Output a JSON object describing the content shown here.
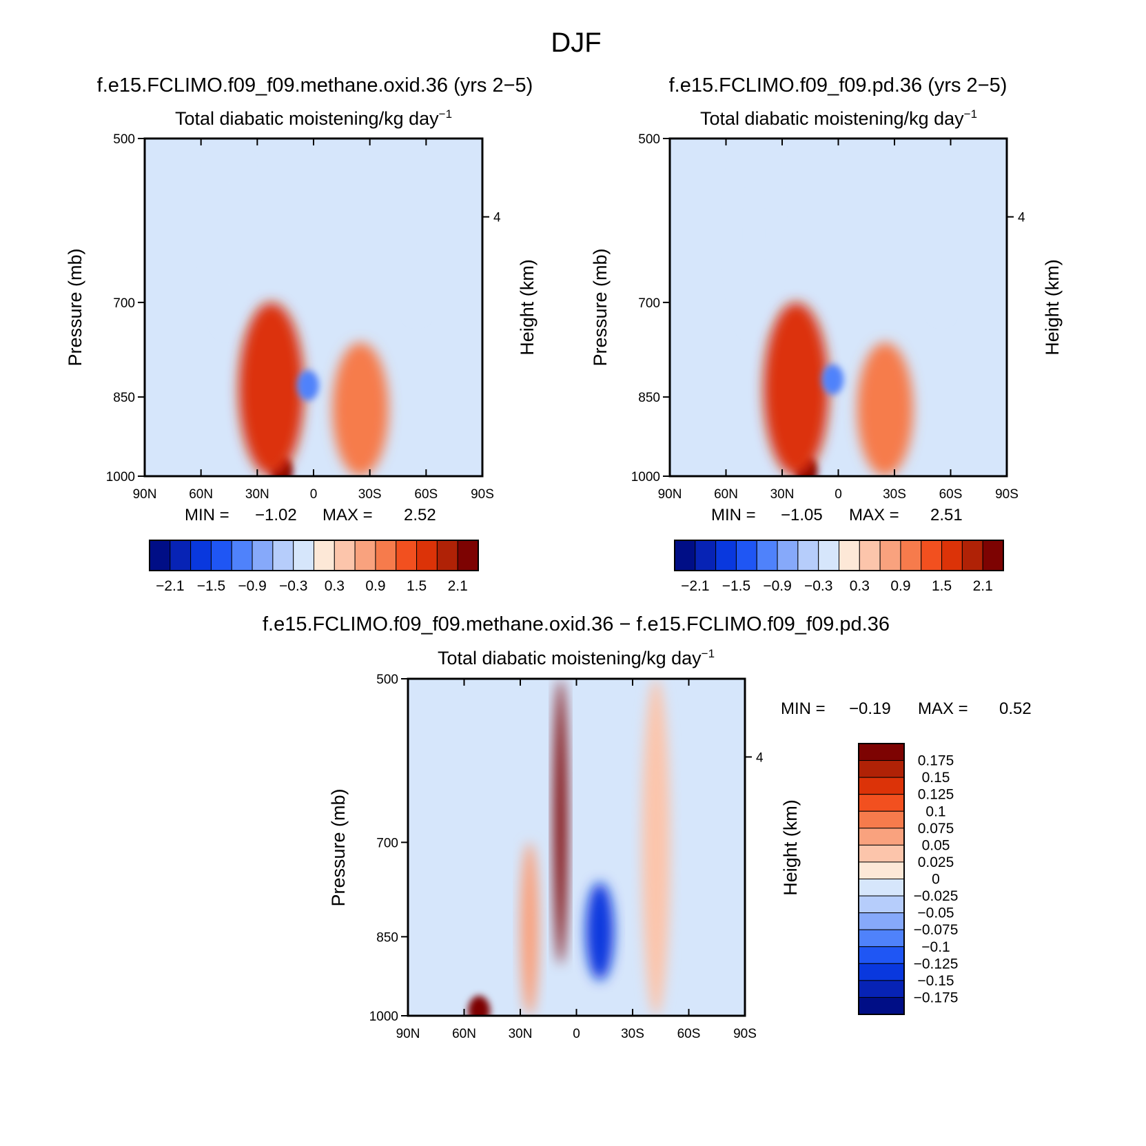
{
  "figure": {
    "season": "DJF"
  },
  "chart_data": [
    {
      "type": "heatmap",
      "title": "f.e15.FCLIMO.f09_f09.methane.oxid.36 (yrs 2−5)",
      "variable": "Total diabatic moistening/kg day",
      "variable_exp": "−1",
      "xlabel": "",
      "ylabel": "Pressure (mb)",
      "right_label": "Height (km)",
      "x_ticks": [
        "90N",
        "60N",
        "30N",
        "0",
        "30S",
        "60S",
        "90S"
      ],
      "x_range": [
        90,
        -90
      ],
      "y_ticks": [
        500,
        700,
        850,
        1000
      ],
      "y_range": [
        500,
        1000
      ],
      "y_scale": "log-pressure",
      "height_ticks": [
        "4"
      ],
      "min_label": "MIN =",
      "min": "−1.02",
      "max_label": "MAX =",
      "max": "2.52",
      "colorbar": {
        "orientation": "horizontal",
        "levels": [
          -2.1,
          -1.8,
          -1.5,
          -1.2,
          -0.9,
          -0.6,
          -0.3,
          0,
          0.3,
          0.6,
          0.9,
          1.2,
          1.5,
          1.8,
          2.1
        ],
        "tick_labels": [
          "−2.1",
          "−1.5",
          "−0.9",
          "−0.3",
          "0.3",
          "0.9",
          "1.5",
          "2.1"
        ]
      },
      "features": [
        {
          "kind": "moistening maximum",
          "lat": 17,
          "pressure": 990,
          "value": 2.52
        },
        {
          "kind": "moistening band",
          "lat_range": [
            5,
            40
          ],
          "pressure_range": [
            700,
            1000
          ],
          "value": 1.5
        },
        {
          "kind": "moistening band",
          "lat_range": [
            -40,
            -10
          ],
          "pressure_range": [
            760,
            1000
          ],
          "value": 1.1
        },
        {
          "kind": "drying minimum",
          "lat": 3,
          "pressure": 830,
          "value": -1.02
        },
        {
          "kind": "weak drying",
          "lat_range": [
            35,
            55
          ],
          "pressure_range": [
            500,
            740
          ],
          "value": -0.3
        },
        {
          "kind": "weak drying",
          "lat_range": [
            -60,
            -50
          ],
          "pressure_range": [
            500,
            720
          ],
          "value": -0.3
        }
      ]
    },
    {
      "type": "heatmap",
      "title": "f.e15.FCLIMO.f09_f09.pd.36 (yrs 2−5)",
      "variable": "Total diabatic moistening/kg day",
      "variable_exp": "−1",
      "xlabel": "",
      "ylabel": "Pressure (mb)",
      "right_label": "Height (km)",
      "x_ticks": [
        "90N",
        "60N",
        "30N",
        "0",
        "30S",
        "60S",
        "90S"
      ],
      "x_range": [
        90,
        -90
      ],
      "y_ticks": [
        500,
        700,
        850,
        1000
      ],
      "y_range": [
        500,
        1000
      ],
      "y_scale": "log-pressure",
      "height_ticks": [
        "4"
      ],
      "min_label": "MIN =",
      "min": "−1.05",
      "max_label": "MAX =",
      "max": "2.51",
      "colorbar": {
        "orientation": "horizontal",
        "levels": [
          -2.1,
          -1.8,
          -1.5,
          -1.2,
          -0.9,
          -0.6,
          -0.3,
          0,
          0.3,
          0.6,
          0.9,
          1.2,
          1.5,
          1.8,
          2.1
        ],
        "tick_labels": [
          "−2.1",
          "−1.5",
          "−0.9",
          "−0.3",
          "0.3",
          "0.9",
          "1.5",
          "2.1"
        ]
      },
      "features": [
        {
          "kind": "moistening maximum",
          "lat": 17,
          "pressure": 990,
          "value": 2.51
        },
        {
          "kind": "moistening band",
          "lat_range": [
            5,
            40
          ],
          "pressure_range": [
            700,
            1000
          ],
          "value": 1.5
        },
        {
          "kind": "moistening band",
          "lat_range": [
            -40,
            -10
          ],
          "pressure_range": [
            760,
            1000
          ],
          "value": 1.1
        },
        {
          "kind": "drying minimum",
          "lat": 3,
          "pressure": 820,
          "value": -1.05
        },
        {
          "kind": "weak drying",
          "lat_range": [
            35,
            55
          ],
          "pressure_range": [
            500,
            740
          ],
          "value": -0.3
        },
        {
          "kind": "weak drying",
          "lat_range": [
            -60,
            -50
          ],
          "pressure_range": [
            500,
            720
          ],
          "value": -0.3
        }
      ]
    },
    {
      "type": "heatmap",
      "title": "f.e15.FCLIMO.f09_f09.methane.oxid.36 − f.e15.FCLIMO.f09_f09.pd.36",
      "variable": "Total diabatic moistening/kg day",
      "variable_exp": "−1",
      "xlabel": "",
      "ylabel": "Pressure (mb)",
      "right_label": "Height (km)",
      "x_ticks": [
        "90N",
        "60N",
        "30N",
        "0",
        "30S",
        "60S",
        "90S"
      ],
      "x_range": [
        90,
        -90
      ],
      "y_ticks": [
        500,
        700,
        850,
        1000
      ],
      "y_range": [
        500,
        1000
      ],
      "y_scale": "log-pressure",
      "height_ticks": [
        "4"
      ],
      "min_label": "MIN =",
      "min": "−0.19",
      "max_label": "MAX =",
      "max": "0.52",
      "colorbar": {
        "orientation": "vertical",
        "levels": [
          0.175,
          0.15,
          0.125,
          0.1,
          0.075,
          0.05,
          0.025,
          0,
          -0.025,
          -0.05,
          -0.075,
          -0.1,
          -0.125,
          -0.15,
          -0.175
        ],
        "tick_labels": [
          "0.175",
          "0.15",
          "0.125",
          "0.1",
          "0.075",
          "0.05",
          "0.025",
          "0",
          "−0.025",
          "−0.05",
          "−0.075",
          "−0.1",
          "−0.125",
          "−0.15",
          "−0.175"
        ]
      },
      "features": [
        {
          "kind": "positive difference column",
          "lat_range": [
            5,
            12
          ],
          "pressure_range": [
            500,
            900
          ],
          "value": 0.2
        },
        {
          "kind": "positive maximum",
          "lat": 52,
          "pressure": 990,
          "value": 0.52
        },
        {
          "kind": "negative difference column",
          "lat_range": [
            -20,
            -5
          ],
          "pressure_range": [
            760,
            930
          ],
          "value": -0.15
        },
        {
          "kind": "weak positive",
          "lat_range": [
            -50,
            -35
          ],
          "pressure_range": [
            500,
            1000
          ],
          "value": 0.025
        },
        {
          "kind": "weak positive",
          "lat_range": [
            20,
            30
          ],
          "pressure_range": [
            700,
            1000
          ],
          "value": 0.05
        }
      ]
    }
  ],
  "colors": {
    "palette": [
      "#000e86",
      "#0723b5",
      "#0938de",
      "#1f56f4",
      "#4f82fb",
      "#86a9fa",
      "#b6cdfb",
      "#d6e6fb",
      "#fde8d7",
      "#fcc5ab",
      "#f9a27e",
      "#f67b4c",
      "#f2501f",
      "#dc3308",
      "#b02206",
      "#7d0302"
    ],
    "background_field": "#d6e6fb",
    "axis": "#000000"
  }
}
